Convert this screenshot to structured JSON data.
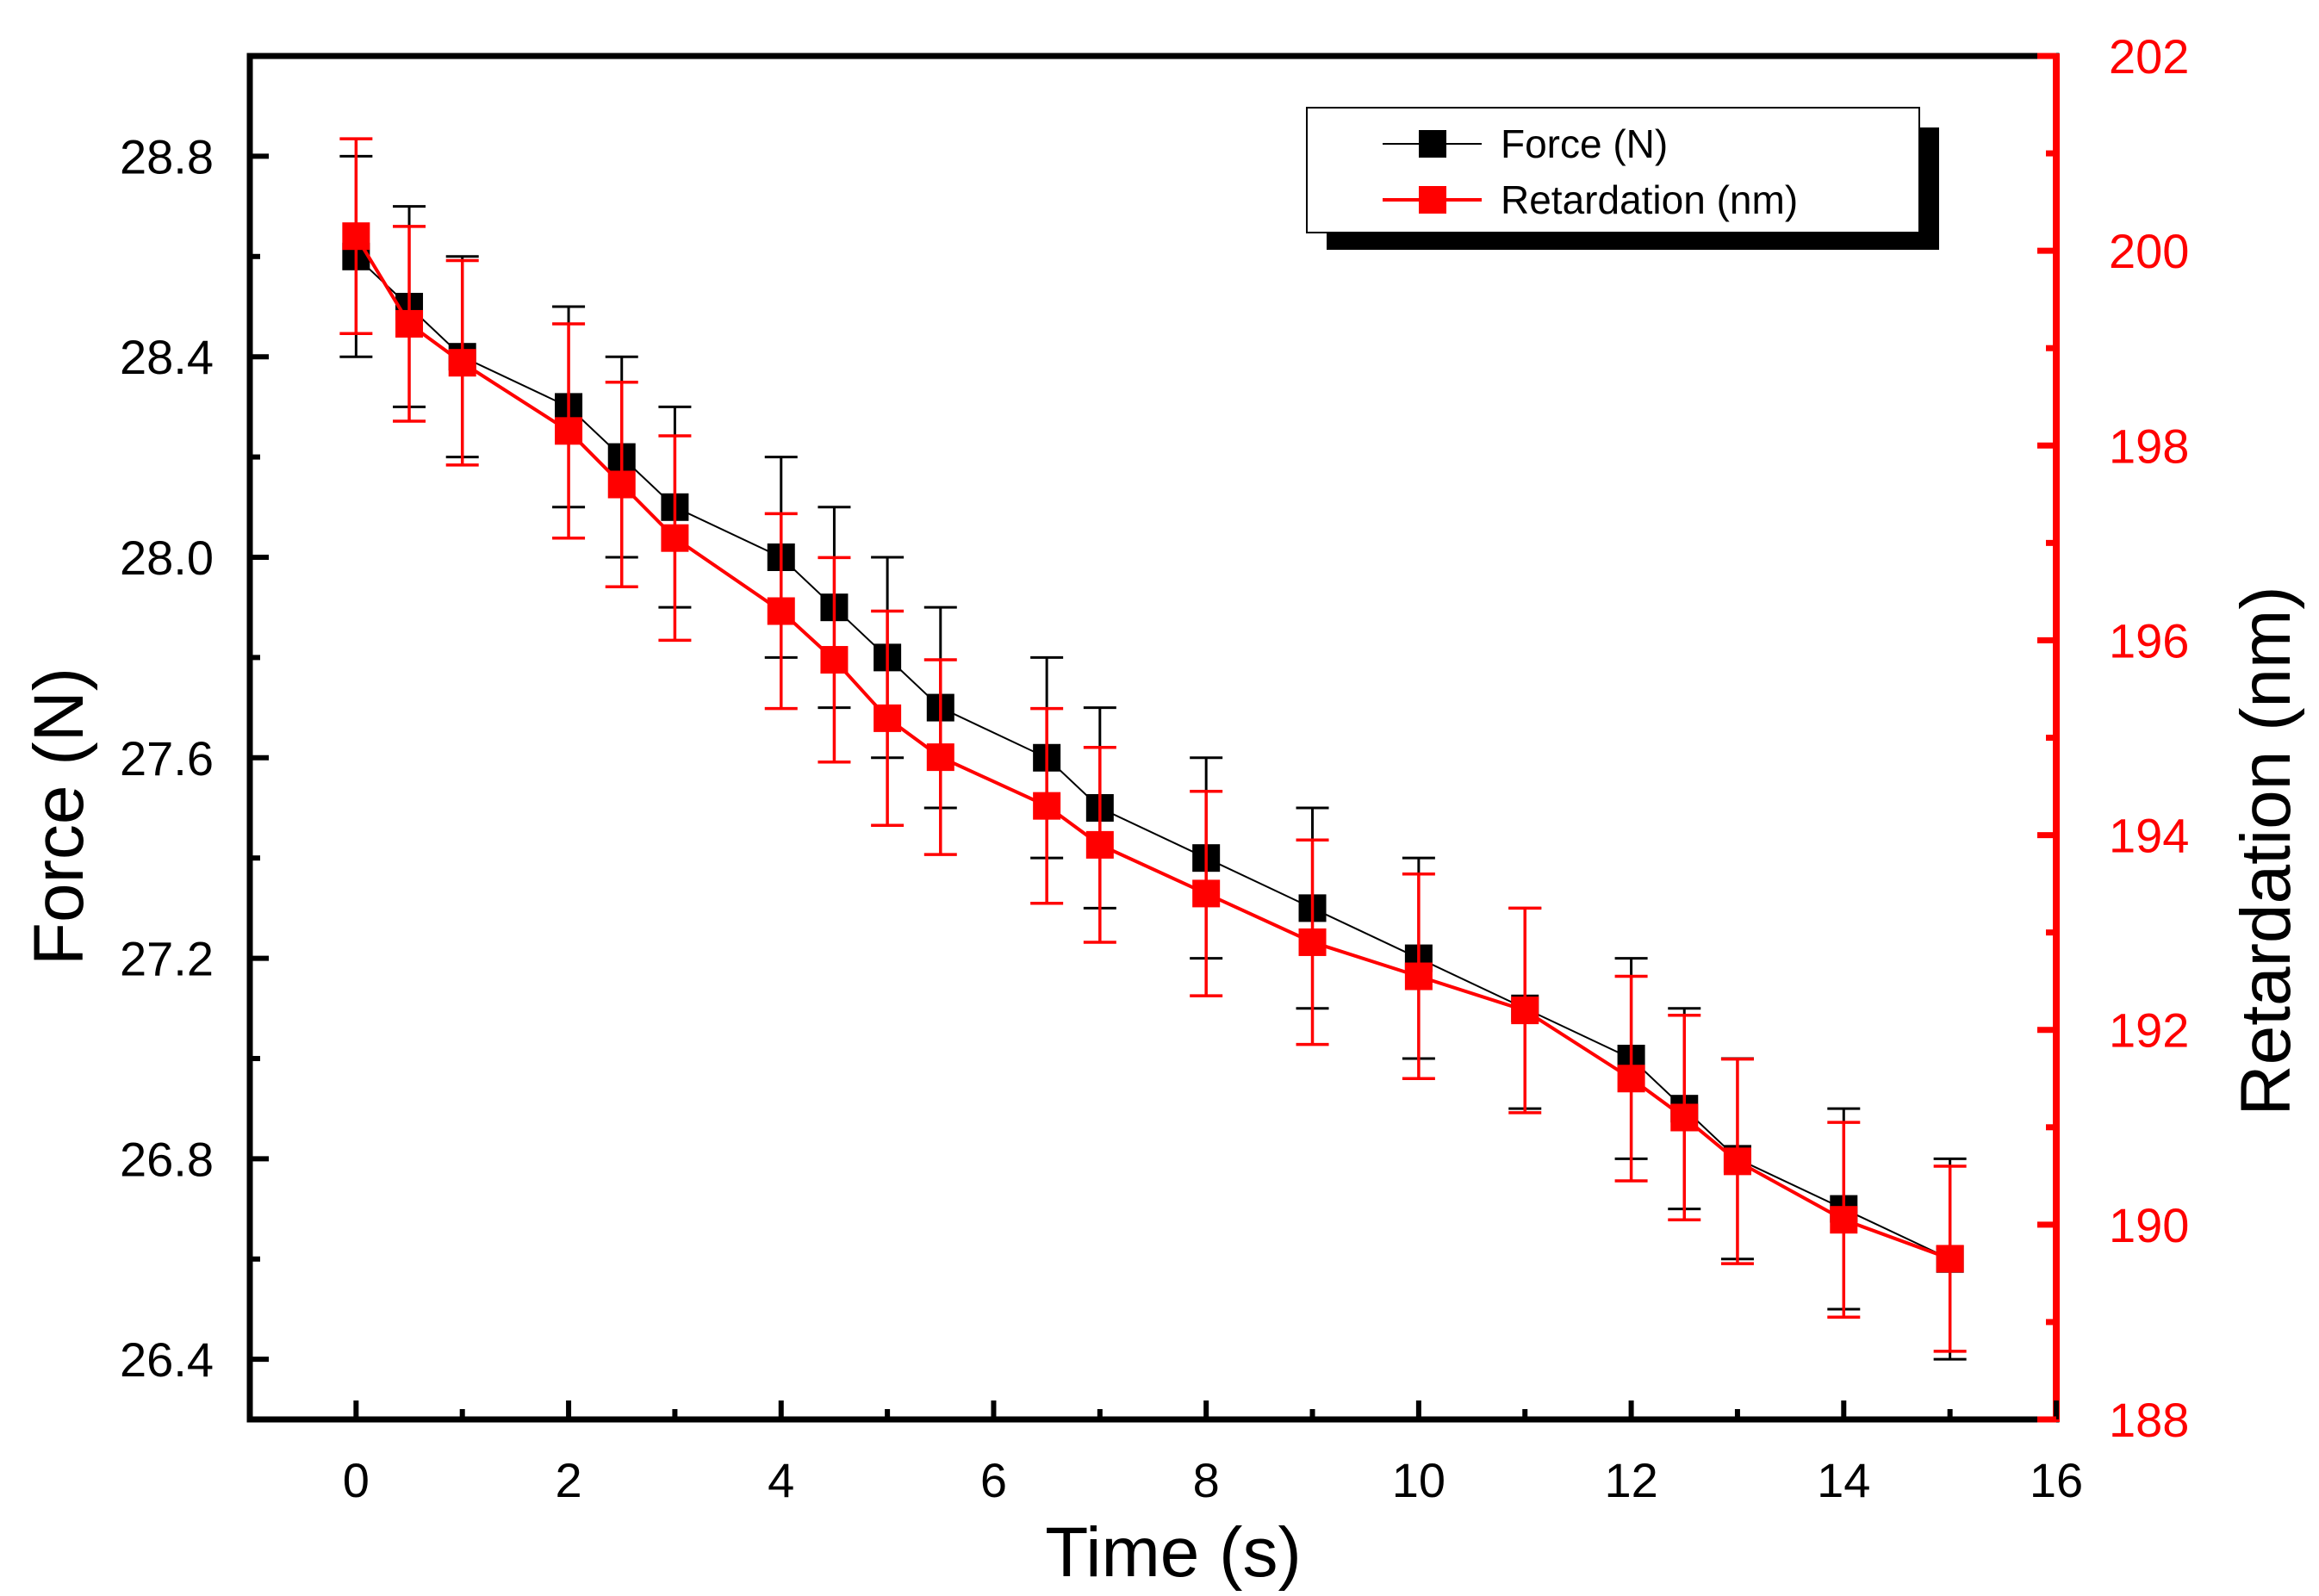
{
  "chart_data": {
    "type": "line",
    "title": "",
    "xlabel": "Time (s)",
    "ylabel": "Force (N)",
    "y2label": "Retardation (nm)",
    "xlim": [
      -1,
      16
    ],
    "ylim": [
      26.28,
      29.0
    ],
    "y2lim": [
      188,
      202
    ],
    "x_ticks": [
      0,
      2,
      4,
      6,
      8,
      10,
      12,
      14,
      16
    ],
    "x_tick_labels": [
      "0",
      "2",
      "4",
      "6",
      "8",
      "10",
      "12",
      "14",
      "16"
    ],
    "y_ticks": [
      26.4,
      26.8,
      27.2,
      27.6,
      28.0,
      28.4,
      28.8
    ],
    "y_tick_labels": [
      "26.4",
      "26.8",
      "27.2",
      "27.6",
      "28.0",
      "28.4",
      "28.8"
    ],
    "y2_ticks": [
      188,
      190,
      192,
      194,
      196,
      198,
      200,
      202
    ],
    "y2_tick_labels": [
      "188",
      "190",
      "192",
      "194",
      "196",
      "198",
      "200",
      "202"
    ],
    "grid": false,
    "legend_position": "top-right",
    "legend": [
      "Force (N)",
      "Retardation (nm)"
    ],
    "x": [
      0,
      0.5,
      1,
      2,
      2.5,
      3,
      4,
      4.5,
      5,
      5.5,
      6.5,
      7,
      8,
      9,
      10,
      11,
      12,
      12.5,
      13,
      14,
      15
    ],
    "series": [
      {
        "name": "Force (N)",
        "axis": "left",
        "color": "#000000",
        "values": [
          28.6,
          28.5,
          28.4,
          28.3,
          28.2,
          28.1,
          28.0,
          27.9,
          27.8,
          27.7,
          27.6,
          27.5,
          27.4,
          27.3,
          27.2,
          27.1,
          27.0,
          26.9,
          26.8,
          26.7,
          26.6
        ],
        "error": [
          0.2,
          0.2,
          0.2,
          0.2,
          0.2,
          0.2,
          0.2,
          0.2,
          0.2,
          0.2,
          0.2,
          0.2,
          0.2,
          0.2,
          0.2,
          0.2,
          0.2,
          0.2,
          0.2,
          0.2,
          0.2
        ]
      },
      {
        "name": "Retardation (nm)",
        "axis": "right",
        "color": "#ff0000",
        "values": [
          200.15,
          199.25,
          198.85,
          198.15,
          197.6,
          197.05,
          196.3,
          195.8,
          195.2,
          194.8,
          194.3,
          193.9,
          193.4,
          192.9,
          192.55,
          192.2,
          191.5,
          191.1,
          190.65,
          190.05,
          189.65
        ],
        "error": [
          1.0,
          1.0,
          1.05,
          1.1,
          1.05,
          1.05,
          1.0,
          1.05,
          1.1,
          1.0,
          1.0,
          1.0,
          1.05,
          1.05,
          1.05,
          1.05,
          1.05,
          1.05,
          1.05,
          1.0,
          0.95
        ]
      }
    ]
  }
}
